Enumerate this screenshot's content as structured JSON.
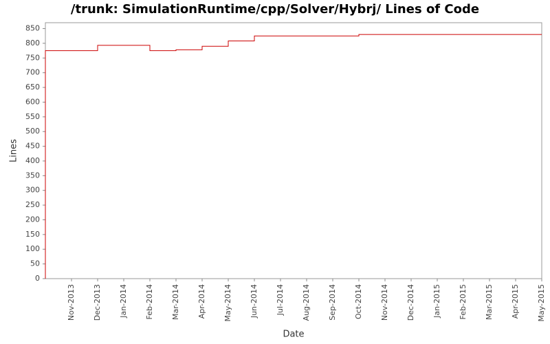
{
  "chart_data": {
    "type": "line",
    "title": "/trunk: SimulationRuntime/cpp/Solver/Hybrj/ Lines of Code",
    "x_label": "Date",
    "y_label": "Lines",
    "step": true,
    "grid": false,
    "x": [
      "2013-10",
      "2013-10",
      "2013-12",
      "2014-02",
      "2014-03",
      "2014-04",
      "2014-05",
      "2014-06",
      "2014-10",
      "2015-05"
    ],
    "series": [
      {
        "name": "Lines",
        "color": "#cc0000",
        "values": [
          0,
          775,
          793,
          775,
          778,
          790,
          808,
          825,
          830,
          830
        ]
      }
    ],
    "xlim": [
      "2013-10",
      "2015-05"
    ],
    "xticks": [
      {
        "value": "2013-11",
        "label": "Nov-2013"
      },
      {
        "value": "2013-12",
        "label": "Dec-2013"
      },
      {
        "value": "2014-01",
        "label": "Jan-2014"
      },
      {
        "value": "2014-02",
        "label": "Feb-2014"
      },
      {
        "value": "2014-03",
        "label": "Mar-2014"
      },
      {
        "value": "2014-04",
        "label": "Apr-2014"
      },
      {
        "value": "2014-05",
        "label": "May-2014"
      },
      {
        "value": "2014-06",
        "label": "Jun-2014"
      },
      {
        "value": "2014-07",
        "label": "Jul-2014"
      },
      {
        "value": "2014-08",
        "label": "Aug-2014"
      },
      {
        "value": "2014-09",
        "label": "Sep-2014"
      },
      {
        "value": "2014-10",
        "label": "Oct-2014"
      },
      {
        "value": "2014-11",
        "label": "Nov-2014"
      },
      {
        "value": "2014-12",
        "label": "Dec-2014"
      },
      {
        "value": "2015-01",
        "label": "Jan-2015"
      },
      {
        "value": "2015-02",
        "label": "Feb-2015"
      },
      {
        "value": "2015-03",
        "label": "Mar-2015"
      },
      {
        "value": "2015-04",
        "label": "Apr-2015"
      },
      {
        "value": "2015-05",
        "label": "May-2015"
      }
    ],
    "ylim": [
      0,
      870
    ],
    "yticks": [
      0,
      50,
      100,
      150,
      200,
      250,
      300,
      350,
      400,
      450,
      500,
      550,
      600,
      650,
      700,
      750,
      800,
      850
    ]
  }
}
